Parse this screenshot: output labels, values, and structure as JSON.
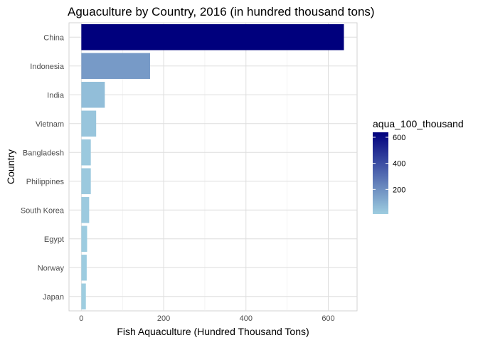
{
  "chart_data": {
    "type": "bar",
    "orientation": "horizontal",
    "title": "Aguaculture by Country, 2016 (in hundred thousand tons)",
    "xlabel": "Fish Aquaculture (Hundred Thousand Tons)",
    "ylabel": "Country",
    "xlim": [
      -30,
      670
    ],
    "x_ticks": [
      0,
      200,
      400,
      600
    ],
    "categories": [
      "China",
      "Indonesia",
      "India",
      "Vietnam",
      "Bangladesh",
      "Philippines",
      "South Korea",
      "Egypt",
      "Norway",
      "Japan"
    ],
    "values": [
      638,
      167,
      57,
      36,
      23,
      23,
      19,
      14,
      13,
      11
    ],
    "grid": true,
    "legend": {
      "title": "aqua_100_thousand",
      "position": "right",
      "breaks": [
        200,
        400,
        600
      ],
      "range": [
        11,
        638
      ],
      "color_low": "#9ecde0",
      "color_high": "#00007d"
    }
  }
}
